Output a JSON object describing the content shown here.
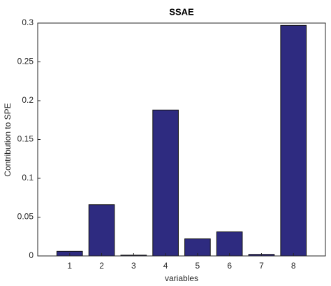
{
  "chart_data": {
    "type": "bar",
    "title": "SSAE",
    "xlabel": "variables",
    "ylabel": "Contribution to SPE",
    "categories": [
      "1",
      "2",
      "3",
      "4",
      "5",
      "6",
      "7",
      "8"
    ],
    "values": [
      0.006,
      0.066,
      0.001,
      0.188,
      0.022,
      0.031,
      0.002,
      0.297
    ],
    "color": "#2e2b80",
    "ylim": [
      0,
      0.3
    ],
    "yticks": [
      0,
      0.05,
      0.1,
      0.15,
      0.2,
      0.25,
      0.3
    ],
    "grid": false
  }
}
